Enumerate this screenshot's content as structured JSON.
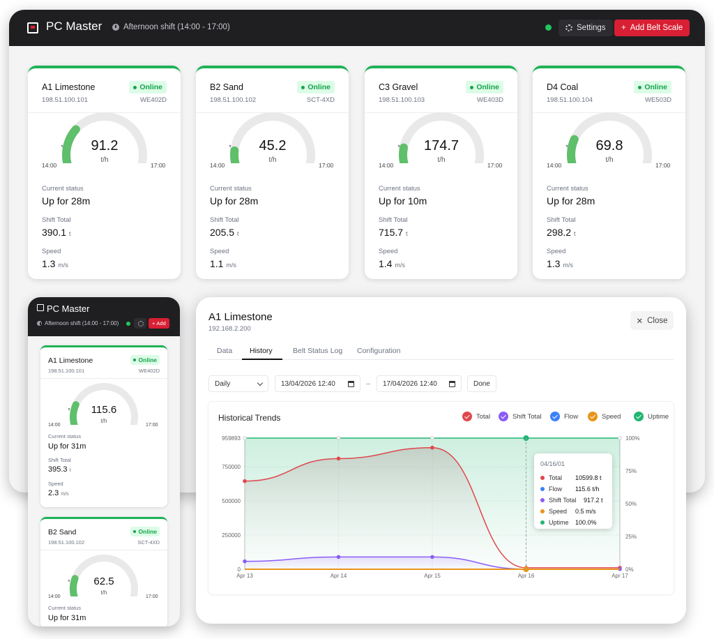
{
  "app": {
    "title": "PC Master",
    "shift": "Afternoon shift (14:00 - 17:00)",
    "settings_label": "Settings",
    "add_label": "Add Belt Scale",
    "add_short": "Add"
  },
  "gauge_labels": {
    "start": "14:00",
    "end": "17:00",
    "unit": "t/h"
  },
  "field_labels": {
    "status": "Current status",
    "total": "Shift Total",
    "speed": "Speed",
    "total_unit": "t",
    "speed_unit": "m/s"
  },
  "scales": [
    {
      "name": "A1 Limestone",
      "status": "Online",
      "ip": "198.51.100.101",
      "model": "WE402D",
      "flow": "91.2",
      "gauge_level": 0.28,
      "uptime": "Up for 28m",
      "shift_total": "390.1",
      "speed": "1.3"
    },
    {
      "name": "B2 Sand",
      "status": "Online",
      "ip": "198.51.100.102",
      "model": "SCT-4XD",
      "flow": "45.2",
      "gauge_level": 0.12,
      "uptime": "Up for 28m",
      "shift_total": "205.5",
      "speed": "1.1"
    },
    {
      "name": "C3 Gravel",
      "status": "Online",
      "ip": "198.51.100.103",
      "model": "WE403D",
      "flow": "174.7",
      "gauge_level": 0.14,
      "uptime": "Up for 10m",
      "shift_total": "715.7",
      "speed": "1.4"
    },
    {
      "name": "D4 Coal",
      "status": "Online",
      "ip": "198.51.100.104",
      "model": "WE503D",
      "flow": "69.8",
      "gauge_level": 0.2,
      "uptime": "Up for 28m",
      "shift_total": "298.2",
      "speed": "1.3"
    }
  ],
  "mobile": {
    "cards": [
      {
        "name": "A1 Limestone",
        "status": "Online",
        "ip": "198.51.100.101",
        "model": "WE402D",
        "flow": "115.6",
        "gauge_level": 0.2,
        "uptime": "Up for 31m",
        "shift_total": "395.3",
        "speed": "2.3"
      },
      {
        "name": "B2 Sand",
        "status": "Online",
        "ip": "198.51.100.102",
        "model": "SCT-4XD",
        "flow": "62.5",
        "gauge_level": 0.18,
        "uptime": "Up for 31m"
      }
    ]
  },
  "detail": {
    "title": "A1 Limestone",
    "ip": "192.168.2.200",
    "close_label": "Close",
    "tabs": [
      "Data",
      "History",
      "Belt Status Log",
      "Configuration"
    ],
    "active_tab": "History",
    "period": "Daily",
    "date_from": "13/04/2026  12:40",
    "date_to": "17/04/2026  12:40",
    "dash": "–",
    "done_label": "Done"
  },
  "colors": {
    "total": "#e0474c",
    "shift_total": "#8b5cf6",
    "flow": "#3b82f6",
    "speed": "#e8941a",
    "uptime": "#22b573",
    "brand": "#d81f33",
    "online": "#1fb256"
  },
  "chart_data": {
    "type": "line",
    "title": "Historical Trends",
    "x": [
      "Apr 13",
      "Apr 14",
      "Apr 15",
      "Apr 16",
      "Apr 17"
    ],
    "left_ticks": [
      "959893",
      "750000",
      "500000",
      "250000",
      "0"
    ],
    "right_ticks": [
      "100%",
      "75%",
      "50%",
      "25%",
      "0%"
    ],
    "ylim": [
      0,
      959893
    ],
    "y2lim": [
      0,
      100
    ],
    "series": [
      {
        "name": "Total",
        "axis": "left",
        "values": [
          645000,
          810000,
          890000,
          10599.8,
          10599.8
        ]
      },
      {
        "name": "Shift Total",
        "axis": "left",
        "values": [
          58000,
          90000,
          90000,
          917.2,
          917.2
        ]
      },
      {
        "name": "Flow",
        "axis": "left",
        "values": [
          1000,
          1000,
          1000,
          115.6,
          115.6
        ]
      },
      {
        "name": "Speed",
        "axis": "left",
        "values": [
          0.5,
          0.5,
          0.5,
          0.5,
          0.5
        ]
      },
      {
        "name": "Uptime",
        "axis": "right",
        "values": [
          100,
          100,
          100,
          100,
          100
        ]
      }
    ],
    "tooltip": {
      "date": "04/16/01",
      "rows": [
        {
          "label": "Total",
          "value": "10599.8 t"
        },
        {
          "label": "Flow",
          "value": "115.6 t/h"
        },
        {
          "label": "Shift Total",
          "value": "917.2 t"
        },
        {
          "label": "Speed",
          "value": "0.5 m/s"
        },
        {
          "label": "Uptime",
          "value": "100.0%"
        }
      ]
    },
    "grid": true,
    "legend_position": "top-right"
  }
}
